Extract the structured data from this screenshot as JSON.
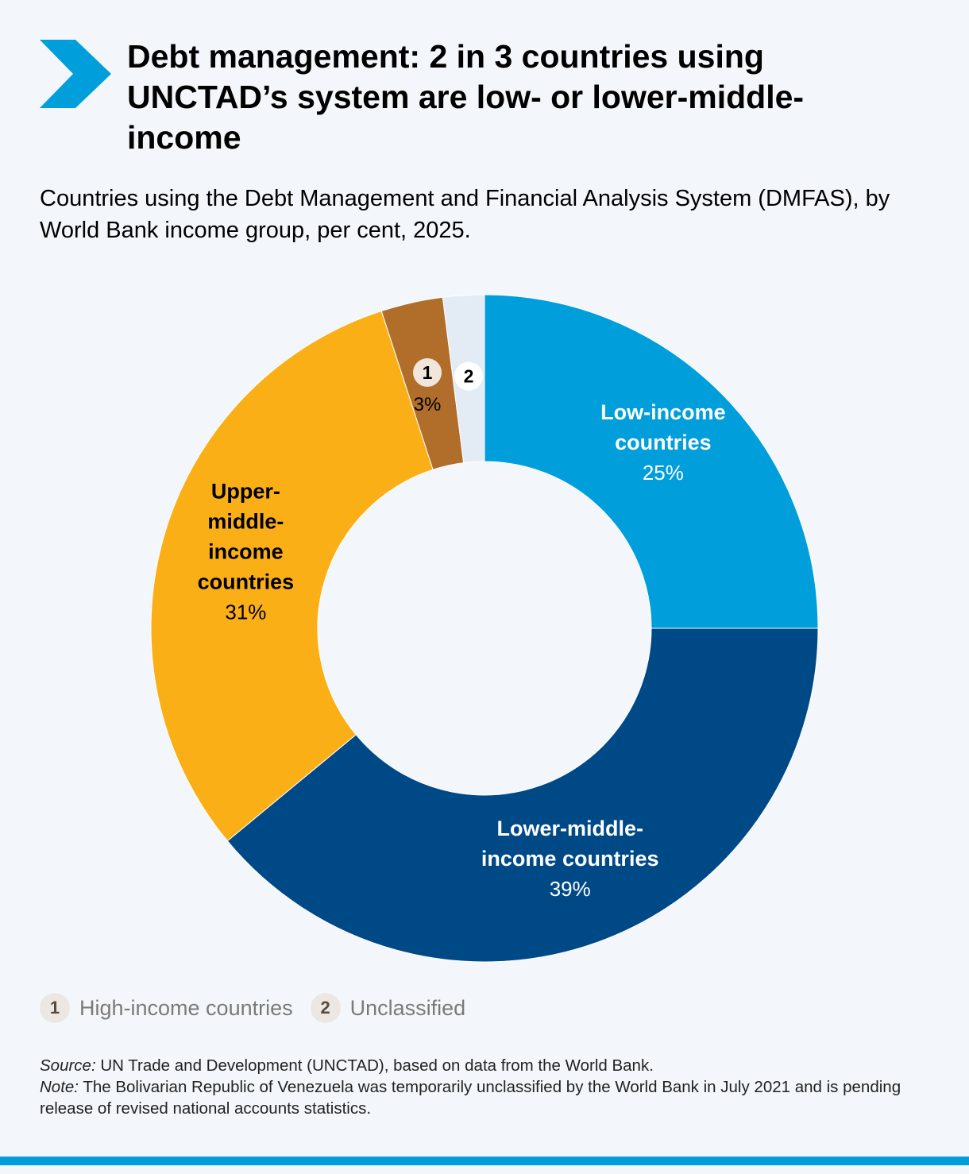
{
  "header": {
    "title": "Debt management: 2 in 3 countries using UNCTAD’s system are low- or lower-middle-income",
    "subtitle": "Countries using the Debt Management and Financial Analysis System (DMFAS), by World Bank income group, per cent, 2025."
  },
  "chart_data": {
    "type": "pie",
    "variant": "donut",
    "title": "",
    "unit": "per cent",
    "slices": [
      {
        "label_lines": [
          "Low-income",
          "countries"
        ],
        "value": 25,
        "value_label": "25%",
        "color": "#009edb",
        "label_color": "#ffffff"
      },
      {
        "label_lines": [
          "Lower-middle-",
          "income countries"
        ],
        "value": 39,
        "value_label": "39%",
        "color": "#004987",
        "label_color": "#ffffff"
      },
      {
        "label_lines": [
          "Upper-",
          "middle-",
          "income",
          "countries"
        ],
        "value": 31,
        "value_label": "31%",
        "color": "#fbaf17",
        "label_color": "#000000"
      },
      {
        "marker": "1",
        "legend_label": "High-income countries",
        "value": 3,
        "value_label": "3%",
        "color": "#b06e2a",
        "label_color": "#000000"
      },
      {
        "marker": "2",
        "legend_label": "Unclassified",
        "value": 2,
        "value_label": "",
        "color": "#e3ecf5",
        "label_color": "#000000"
      }
    ]
  },
  "legend": [
    {
      "marker": "1",
      "label": "High-income countries"
    },
    {
      "marker": "2",
      "label": "Unclassified"
    }
  ],
  "footnotes": {
    "source_prefix": "Source:",
    "source_text": " UN Trade and Development (UNCTAD), based on data from the World Bank.",
    "note_prefix": "Note:",
    "note_text": " The Bolivarian Republic of Venezuela was temporarily unclassified by the World Bank in July 2021 and is pending release of revised national accounts statistics."
  },
  "colors": {
    "accent": "#009edb",
    "background": "#f3f7fb",
    "marker_1_bg": "#f0e6dc",
    "marker_2_bg": "#ffffff",
    "legend_badge_bg": "#ece7e2",
    "legend_badge_text": "#5a4a3e"
  }
}
